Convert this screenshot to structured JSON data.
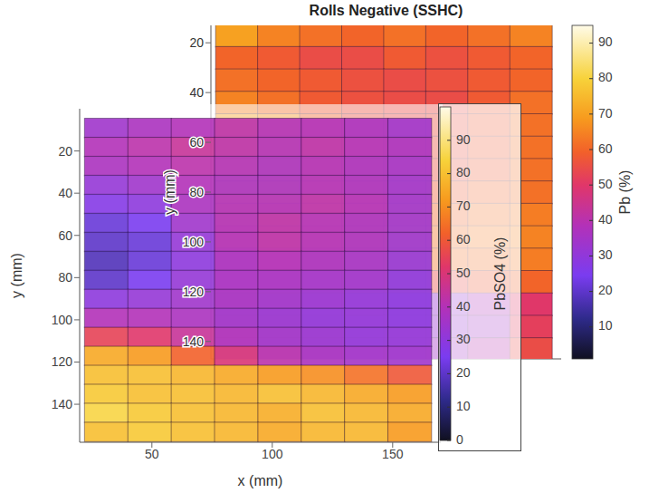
{
  "chart_data": [
    {
      "type": "heatmap",
      "title": "Rolls Negative (SSHC)",
      "ylabel": "y (mm)",
      "tick_labels": "y",
      "xlim": [
        20,
        170
      ],
      "ylim": [
        13,
        147
      ],
      "yticks": [
        20,
        40,
        60,
        80,
        100,
        120,
        140
      ],
      "x": [
        31,
        49,
        67,
        85,
        103,
        121,
        139,
        157
      ],
      "y": [
        17,
        26,
        35,
        44,
        53,
        62,
        71,
        80,
        89,
        98,
        107,
        116,
        125,
        134,
        143
      ],
      "cells": [
        [
          70,
          65,
          62,
          60,
          62,
          60,
          62,
          65
        ],
        [
          60,
          58,
          55,
          55,
          58,
          56,
          58,
          60
        ],
        [
          62,
          60,
          58,
          56,
          55,
          56,
          58,
          60
        ],
        [
          65,
          62,
          58,
          56,
          55,
          55,
          58,
          62
        ],
        [
          70,
          68,
          60,
          56,
          55,
          56,
          58,
          62
        ],
        [
          72,
          70,
          62,
          58,
          55,
          56,
          58,
          62
        ],
        [
          75,
          72,
          65,
          58,
          55,
          56,
          58,
          62
        ],
        [
          72,
          70,
          62,
          58,
          56,
          58,
          60,
          62
        ],
        [
          68,
          65,
          62,
          58,
          58,
          60,
          62,
          64
        ],
        [
          58,
          58,
          60,
          60,
          62,
          62,
          64,
          65
        ],
        [
          45,
          48,
          52,
          56,
          60,
          62,
          62,
          64
        ],
        [
          28,
          30,
          38,
          45,
          52,
          55,
          58,
          60
        ],
        [
          22,
          22,
          24,
          28,
          30,
          32,
          38,
          50
        ],
        [
          20,
          20,
          22,
          25,
          30,
          32,
          35,
          52
        ],
        [
          22,
          22,
          22,
          24,
          32,
          35,
          40,
          55
        ]
      ],
      "colorbar": {
        "label": "Pb (%)",
        "range": [
          1,
          95
        ],
        "ticks": [
          10,
          20,
          30,
          40,
          50,
          60,
          70,
          80,
          90
        ]
      }
    },
    {
      "type": "heatmap",
      "xlabel": "x (mm)",
      "ylabel": "y (mm)",
      "xlim": [
        20,
        170
      ],
      "ylim": [
        0,
        158
      ],
      "xticks": [
        50,
        100,
        150
      ],
      "yticks": [
        20,
        40,
        60,
        80,
        100,
        120,
        140
      ],
      "x": [
        31,
        49,
        67,
        85,
        103,
        121,
        139,
        157
      ],
      "y": [
        9,
        18,
        27,
        36,
        45,
        54,
        63,
        72,
        81,
        90,
        99,
        108,
        117,
        126,
        135,
        144,
        153
      ],
      "cells": [
        [
          35,
          38,
          40,
          42,
          40,
          40,
          38,
          35
        ],
        [
          40,
          42,
          45,
          42,
          40,
          42,
          40,
          38
        ],
        [
          38,
          40,
          42,
          40,
          38,
          40,
          38,
          36
        ],
        [
          32,
          35,
          40,
          38,
          38,
          40,
          38,
          35
        ],
        [
          28,
          30,
          38,
          40,
          40,
          42,
          40,
          35
        ],
        [
          22,
          25,
          35,
          40,
          42,
          40,
          38,
          35
        ],
        [
          20,
          22,
          32,
          40,
          42,
          40,
          38,
          34
        ],
        [
          18,
          22,
          30,
          38,
          40,
          38,
          36,
          32
        ],
        [
          20,
          25,
          32,
          38,
          38,
          36,
          35,
          30
        ],
        [
          30,
          32,
          35,
          38,
          36,
          34,
          32,
          30
        ],
        [
          40,
          40,
          38,
          36,
          34,
          32,
          32,
          30
        ],
        [
          55,
          52,
          45,
          40,
          36,
          34,
          32,
          32
        ],
        [
          75,
          72,
          62,
          50,
          42,
          38,
          36,
          35
        ],
        [
          80,
          80,
          78,
          75,
          72,
          70,
          65,
          60
        ],
        [
          82,
          80,
          80,
          78,
          80,
          78,
          75,
          72
        ],
        [
          85,
          82,
          80,
          78,
          76,
          80,
          78,
          75
        ],
        [
          80,
          82,
          80,
          78,
          75,
          78,
          78,
          72
        ]
      ],
      "colorbar": {
        "label": "PbSO4 (%)",
        "range": [
          0,
          100
        ],
        "ticks": [
          0,
          10,
          20,
          30,
          40,
          50,
          60,
          70,
          80,
          90
        ]
      }
    }
  ]
}
